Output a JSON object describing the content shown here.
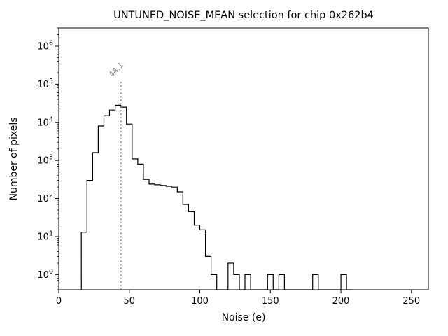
{
  "chart_data": {
    "type": "bar",
    "subtype": "step-histogram",
    "title": "UNTUNED_NOISE_MEAN selection for chip 0x262b4",
    "xlabel": "Noise (e)",
    "ylabel": "Number of pixels",
    "xlim": [
      0,
      262
    ],
    "ylim_log": [
      0.4,
      3000000
    ],
    "x_ticks": [
      0,
      50,
      100,
      150,
      200,
      250
    ],
    "y_ticks_exponents": [
      0,
      1,
      2,
      3,
      4,
      5,
      6
    ],
    "grid": false,
    "legend_position": "none",
    "line_color": "#000000",
    "bin_edges": [
      16,
      20,
      24,
      28,
      32,
      36,
      40,
      44,
      48,
      52,
      56,
      60,
      64,
      68,
      72,
      76,
      80,
      84,
      88,
      92,
      96,
      100,
      104,
      108,
      112,
      116,
      120,
      124,
      128,
      132,
      136,
      140,
      144,
      148,
      152,
      156,
      160,
      164,
      168,
      172,
      176,
      180,
      184,
      188,
      192,
      196,
      200,
      204,
      208
    ],
    "counts": [
      13,
      300,
      1600,
      8000,
      15000,
      21000,
      28000,
      25000,
      9000,
      1100,
      800,
      320,
      240,
      230,
      220,
      210,
      200,
      150,
      70,
      45,
      20,
      15,
      3,
      1,
      0,
      0,
      2,
      1,
      0,
      1,
      0,
      0,
      0,
      1,
      0,
      1,
      0,
      0,
      0,
      0,
      0,
      1,
      0,
      0,
      0,
      0,
      1,
      0
    ],
    "vline": {
      "x": 44.1,
      "label": "44.1",
      "top": 120000,
      "color": "#7f7f7f",
      "style": "dotted"
    }
  }
}
